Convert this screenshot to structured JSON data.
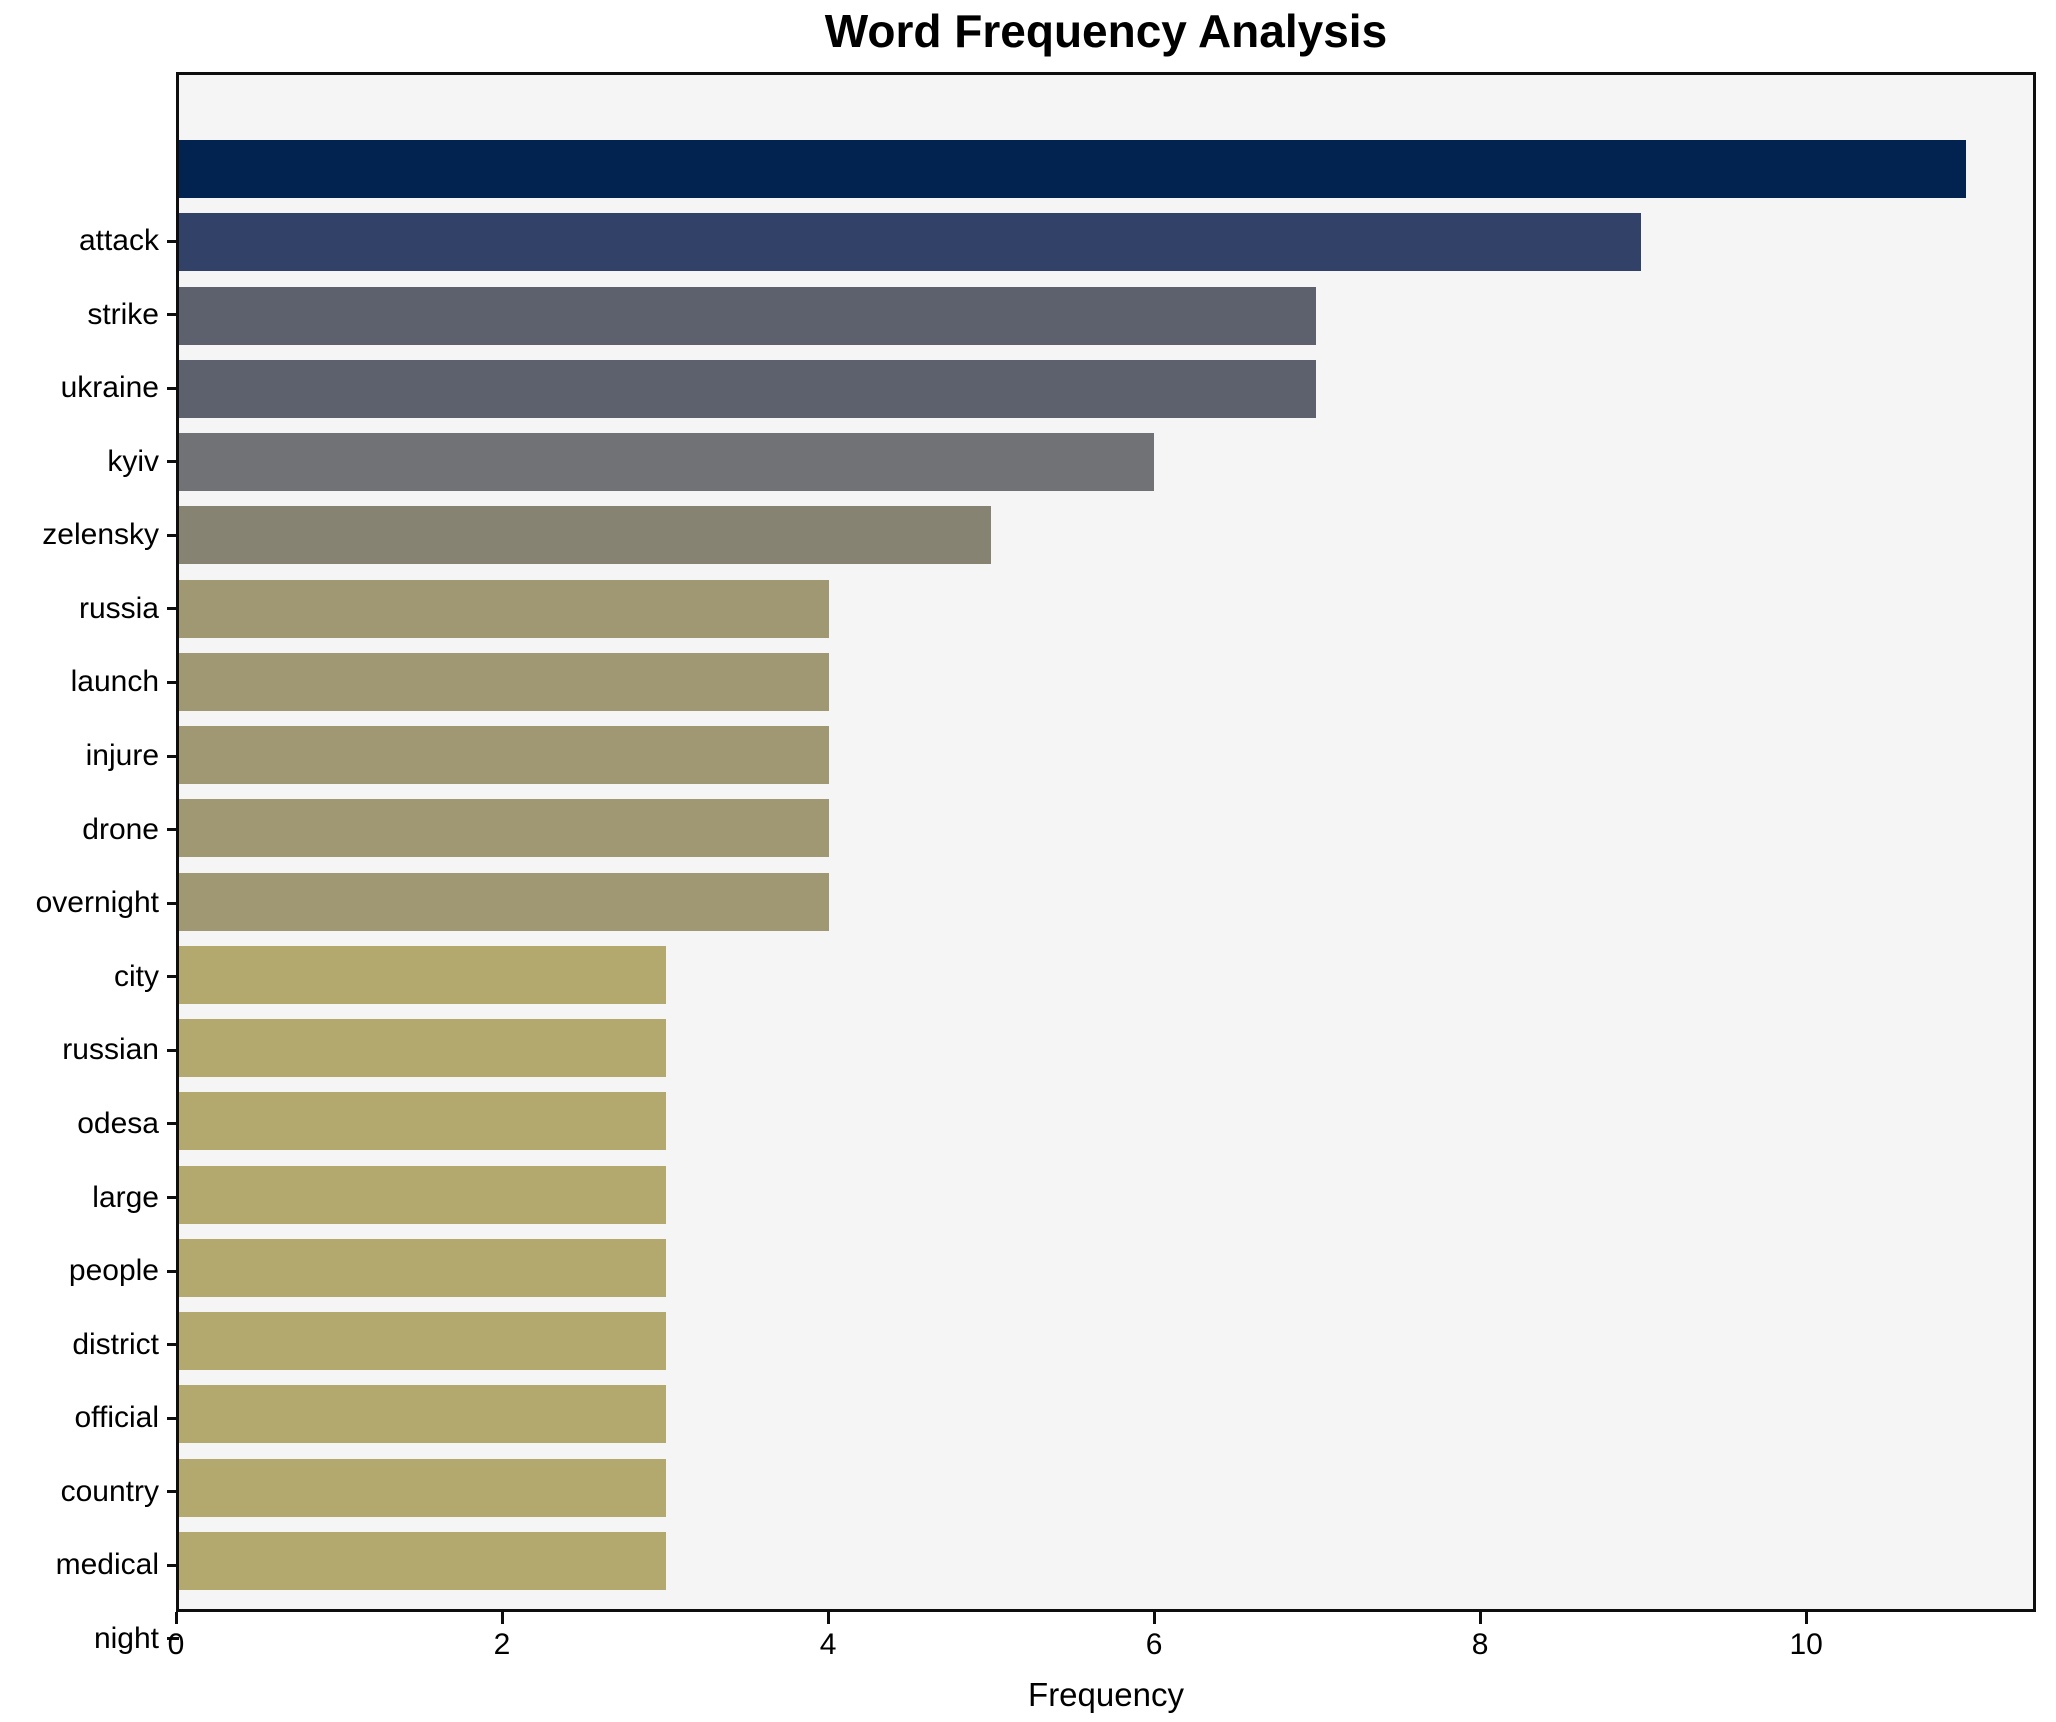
{
  "figure": {
    "title": "Word Frequency Analysis",
    "xlabel": "Frequency"
  },
  "chart_data": {
    "type": "bar",
    "orientation": "horizontal",
    "title": "Word Frequency Analysis",
    "xlabel": "Frequency",
    "ylabel": "",
    "categories": [
      "attack",
      "strike",
      "ukraine",
      "kyiv",
      "zelensky",
      "russia",
      "launch",
      "injure",
      "drone",
      "overnight",
      "city",
      "russian",
      "odesa",
      "large",
      "people",
      "district",
      "official",
      "country",
      "medical",
      "night"
    ],
    "values": [
      11,
      9,
      7,
      7,
      6,
      5,
      4,
      4,
      4,
      4,
      4,
      3,
      3,
      3,
      3,
      3,
      3,
      3,
      3,
      3
    ],
    "bar_colors": [
      "#02234f",
      "#324168",
      "#5d616e",
      "#5d616e",
      "#717275",
      "#868372",
      "#a09873",
      "#a09873",
      "#a09873",
      "#a09873",
      "#a09873",
      "#b3a96f",
      "#b3a96f",
      "#b3a96f",
      "#b3a96f",
      "#b3a96f",
      "#b3a96f",
      "#b3a96f",
      "#b3a96f",
      "#b3a96f"
    ],
    "xlim": [
      0,
      11.41
    ],
    "xticks": [
      0,
      2,
      4,
      6,
      8,
      10
    ],
    "grid": false,
    "legend": false,
    "plot_bg": "#f5f5f6",
    "figure_bg": "#ffffff",
    "spine_color": "#0e0e0e"
  }
}
